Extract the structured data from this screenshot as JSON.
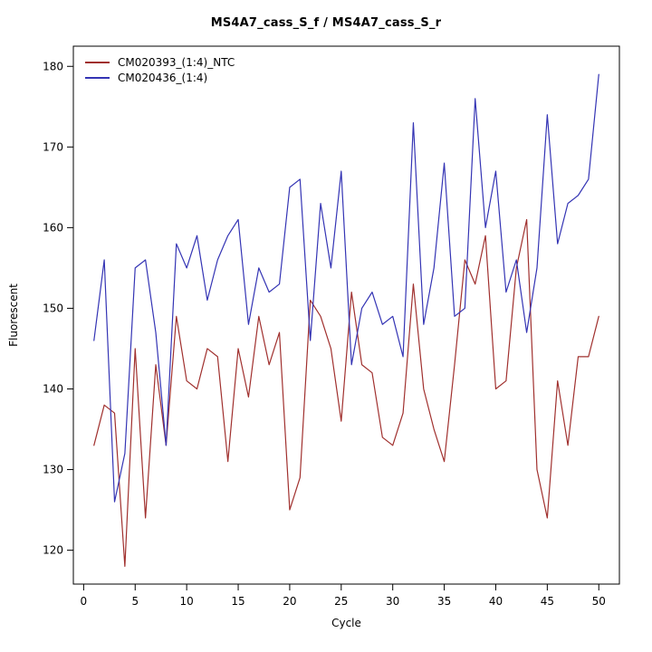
{
  "chart_data": {
    "type": "line",
    "title": "MS4A7_cass_S_f / MS4A7_cass_S_r",
    "xlabel": "Cycle",
    "ylabel": "Fluorescent",
    "grid": false,
    "legend_position": "top-left",
    "xlim": [
      -1,
      52
    ],
    "ylim": [
      115.8,
      182.5
    ],
    "x_ticks": [
      0,
      5,
      10,
      15,
      20,
      25,
      30,
      35,
      40,
      45,
      50
    ],
    "y_ticks": [
      120,
      130,
      140,
      150,
      160,
      170,
      180
    ],
    "x": [
      1,
      2,
      3,
      4,
      5,
      6,
      7,
      8,
      9,
      10,
      11,
      12,
      13,
      14,
      15,
      16,
      17,
      18,
      19,
      20,
      21,
      22,
      23,
      24,
      25,
      26,
      27,
      28,
      29,
      30,
      31,
      32,
      33,
      34,
      35,
      36,
      37,
      38,
      39,
      40,
      41,
      42,
      43,
      44,
      45,
      46,
      47,
      48,
      49,
      50
    ],
    "series": [
      {
        "name": "CM020393_(1:4)_NTC",
        "color": "#A0302E",
        "values": [
          133,
          138,
          137,
          118,
          145,
          124,
          143,
          133,
          149,
          141,
          140,
          145,
          144,
          131,
          145,
          139,
          149,
          143,
          147,
          125,
          129,
          151,
          149,
          145,
          136,
          152,
          143,
          142,
          134,
          133,
          137,
          153,
          140,
          135,
          131,
          143,
          156,
          153,
          159,
          140,
          141,
          155,
          161,
          130,
          124,
          141,
          133,
          144,
          144,
          149
        ]
      },
      {
        "name": "CM020436_(1:4)",
        "color": "#3434B4",
        "values": [
          146,
          156,
          126,
          132,
          155,
          156,
          147,
          133,
          158,
          155,
          159,
          151,
          156,
          159,
          161,
          148,
          155,
          152,
          153,
          165,
          166,
          146,
          163,
          155,
          167,
          143,
          150,
          152,
          148,
          149,
          144,
          173,
          148,
          155,
          168,
          149,
          150,
          176,
          160,
          167,
          152,
          156,
          147,
          155,
          174,
          158,
          163,
          164,
          166,
          179
        ]
      }
    ]
  }
}
